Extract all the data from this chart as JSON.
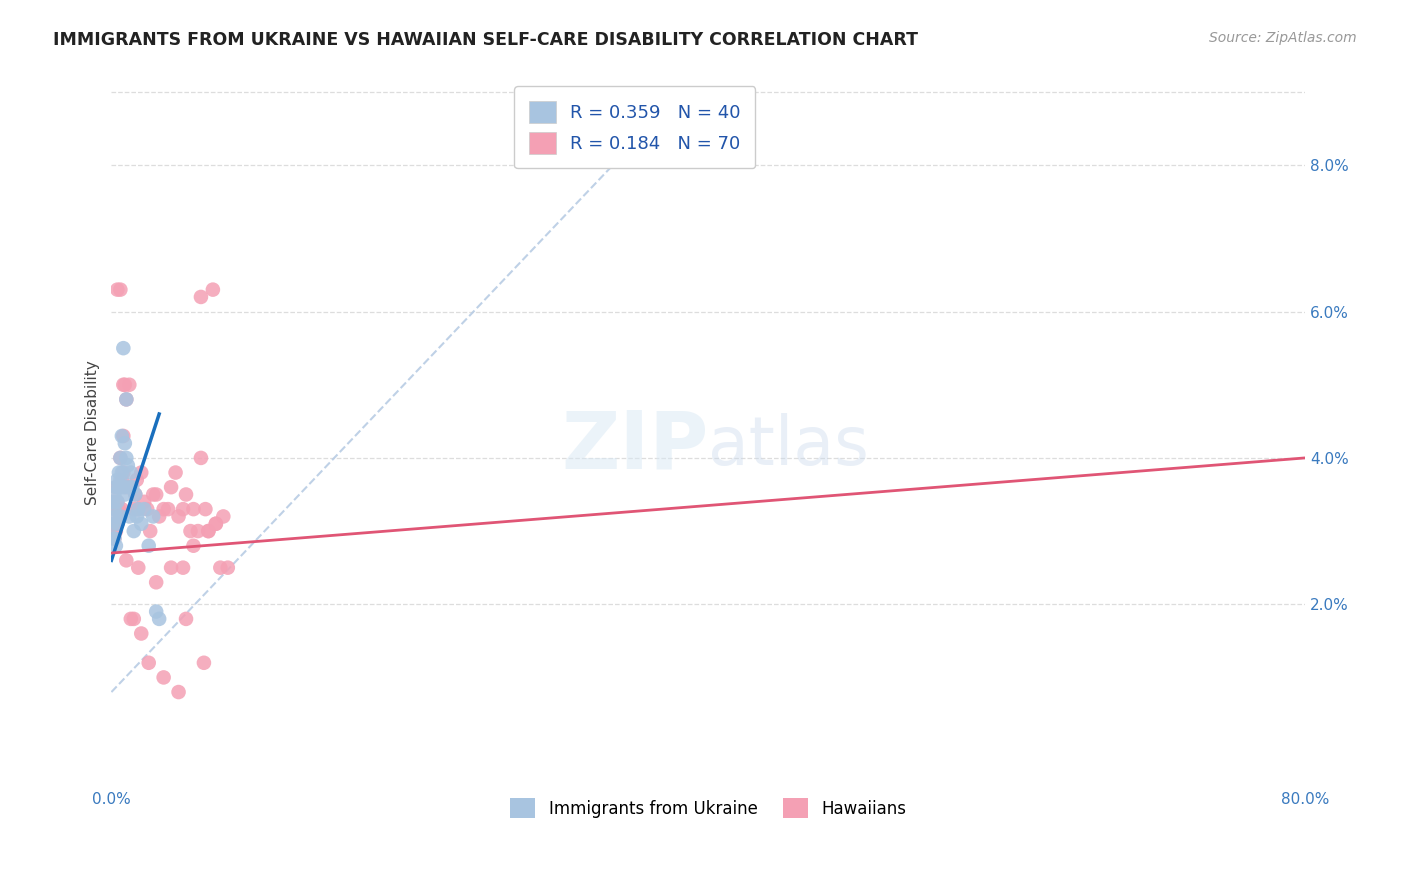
{
  "title": "IMMIGRANTS FROM UKRAINE VS HAWAIIAN SELF-CARE DISABILITY CORRELATION CHART",
  "source": "Source: ZipAtlas.com",
  "ylabel": "Self-Care Disability",
  "yticks": [
    0.0,
    0.02,
    0.04,
    0.06,
    0.08
  ],
  "ytick_labels": [
    "",
    "2.0%",
    "4.0%",
    "6.0%",
    "8.0%"
  ],
  "xlim": [
    0.0,
    0.8
  ],
  "ylim": [
    -0.005,
    0.092
  ],
  "legend_r1": "R = 0.359",
  "legend_n1": "N = 40",
  "legend_r2": "R = 0.184",
  "legend_n2": "N = 70",
  "color_ukraine": "#a8c4e0",
  "color_hawaii": "#f4a0b4",
  "color_ukraine_line": "#1a6fbd",
  "color_hawaii_line": "#e05575",
  "color_dashed": "#b8cce4",
  "ukraine_scatter_x": [
    0.001,
    0.001,
    0.001,
    0.002,
    0.002,
    0.002,
    0.003,
    0.003,
    0.003,
    0.004,
    0.004,
    0.004,
    0.005,
    0.005,
    0.006,
    0.006,
    0.006,
    0.007,
    0.007,
    0.008,
    0.008,
    0.009,
    0.009,
    0.01,
    0.01,
    0.011,
    0.012,
    0.012,
    0.013,
    0.014,
    0.015,
    0.016,
    0.017,
    0.018,
    0.02,
    0.022,
    0.025,
    0.028,
    0.03,
    0.032
  ],
  "ukraine_scatter_y": [
    0.031,
    0.034,
    0.029,
    0.035,
    0.033,
    0.029,
    0.036,
    0.032,
    0.028,
    0.037,
    0.034,
    0.031,
    0.038,
    0.036,
    0.04,
    0.037,
    0.032,
    0.043,
    0.038,
    0.055,
    0.036,
    0.042,
    0.035,
    0.048,
    0.04,
    0.039,
    0.036,
    0.032,
    0.038,
    0.036,
    0.03,
    0.035,
    0.032,
    0.033,
    0.031,
    0.033,
    0.028,
    0.032,
    0.019,
    0.018
  ],
  "hawaii_scatter_x": [
    0.001,
    0.001,
    0.002,
    0.002,
    0.003,
    0.003,
    0.004,
    0.004,
    0.005,
    0.005,
    0.006,
    0.006,
    0.007,
    0.007,
    0.008,
    0.008,
    0.009,
    0.01,
    0.01,
    0.012,
    0.013,
    0.015,
    0.016,
    0.017,
    0.018,
    0.02,
    0.022,
    0.024,
    0.026,
    0.028,
    0.03,
    0.032,
    0.035,
    0.038,
    0.04,
    0.043,
    0.045,
    0.048,
    0.05,
    0.053,
    0.055,
    0.058,
    0.06,
    0.063,
    0.065,
    0.068,
    0.07,
    0.073,
    0.075,
    0.078,
    0.004,
    0.006,
    0.008,
    0.01,
    0.013,
    0.015,
    0.018,
    0.02,
    0.025,
    0.03,
    0.035,
    0.04,
    0.045,
    0.05,
    0.055,
    0.06,
    0.065,
    0.07,
    0.048,
    0.062
  ],
  "hawaii_scatter_y": [
    0.031,
    0.034,
    0.033,
    0.029,
    0.036,
    0.03,
    0.034,
    0.031,
    0.033,
    0.036,
    0.032,
    0.04,
    0.037,
    0.033,
    0.038,
    0.043,
    0.05,
    0.036,
    0.048,
    0.05,
    0.036,
    0.033,
    0.035,
    0.037,
    0.033,
    0.038,
    0.034,
    0.033,
    0.03,
    0.035,
    0.035,
    0.032,
    0.033,
    0.033,
    0.036,
    0.038,
    0.032,
    0.033,
    0.035,
    0.03,
    0.028,
    0.03,
    0.04,
    0.033,
    0.03,
    0.063,
    0.031,
    0.025,
    0.032,
    0.025,
    0.063,
    0.063,
    0.05,
    0.026,
    0.018,
    0.018,
    0.025,
    0.016,
    0.012,
    0.023,
    0.01,
    0.025,
    0.008,
    0.018,
    0.033,
    0.062,
    0.03,
    0.031,
    0.025,
    0.012
  ],
  "ukraine_line_x": [
    0.0,
    0.032
  ],
  "ukraine_line_y": [
    0.026,
    0.046
  ],
  "hawaii_line_x": [
    0.0,
    0.8
  ],
  "hawaii_line_y": [
    0.027,
    0.04
  ],
  "dashed_line_x": [
    0.0,
    0.35
  ],
  "dashed_line_y": [
    0.008,
    0.083
  ]
}
